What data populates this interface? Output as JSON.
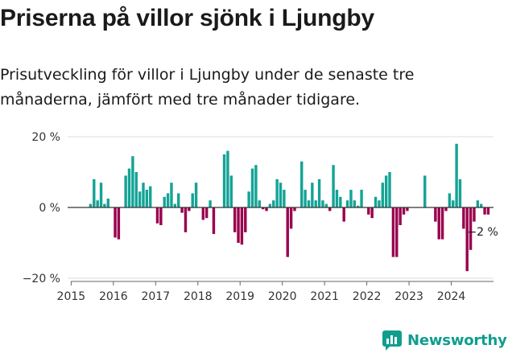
{
  "header": {
    "title": "Priserna på villor sjönk i Ljungby",
    "subtitle": "Prisutveckling för villor i Ljungby under de senaste tre månaderna, jämfört med tre månader tidigare."
  },
  "brand": {
    "name": "Newsworthy",
    "icon": "newsworthy-logo-icon",
    "color": "#0f9e8e"
  },
  "colors": {
    "positive": "#14a396",
    "negative": "#99004d",
    "axis": "#333333",
    "grid": "#dddddd"
  },
  "chart_data": {
    "type": "bar",
    "x_start": "2015-06",
    "x_step": "month",
    "xlim": [
      "2014-12",
      "2025-01"
    ],
    "ylim": [
      -20,
      20
    ],
    "y_ticks": [
      20,
      0,
      -20
    ],
    "y_tick_labels": [
      "20 %",
      "0 %",
      "−20 %"
    ],
    "x_ticks": [
      "2015",
      "2016",
      "2017",
      "2018",
      "2019",
      "2020",
      "2021",
      "2022",
      "2023",
      "2024"
    ],
    "last_value_label": "−2 %",
    "values": [
      1,
      8,
      2,
      7,
      1,
      2.5,
      0,
      -8.5,
      -9,
      0,
      9,
      11,
      14.5,
      10,
      4.5,
      7,
      5,
      6,
      0,
      -4.5,
      -5,
      3,
      4,
      7,
      1,
      4,
      -1.5,
      -7,
      -1,
      4,
      7,
      0,
      -3.5,
      -3,
      2,
      -7.5,
      0,
      0,
      15,
      16,
      9,
      -7,
      -10,
      -10.5,
      -7,
      4.5,
      11,
      12,
      2,
      -0.5,
      -1,
      1,
      2,
      8,
      7,
      5,
      -14,
      -6,
      -1,
      0,
      13,
      5,
      2,
      7,
      2,
      8,
      2,
      1,
      -1,
      12,
      5,
      3,
      -4,
      2,
      5,
      2,
      0.5,
      5,
      0,
      -2,
      -3,
      3,
      2,
      7,
      9,
      10,
      -14,
      -14,
      -5,
      -2,
      -1,
      0,
      0,
      0,
      0,
      9,
      0,
      0,
      -4,
      -9,
      -9,
      -1,
      4,
      2,
      18,
      8,
      -6,
      -18,
      -12,
      -4,
      2,
      1,
      -2,
      -2
    ]
  }
}
